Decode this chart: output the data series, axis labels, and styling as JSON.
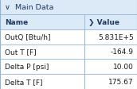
{
  "title": "∨  Main Data",
  "header": [
    "Name",
    "❯ Value"
  ],
  "rows": [
    [
      "OutQ [Btu/h]",
      "5.831E+5"
    ],
    [
      "Out T [F]",
      "-164.9"
    ],
    [
      "Delta P [psi]",
      "10.00"
    ],
    [
      "Delta T [F]",
      "175.67"
    ]
  ],
  "title_bg": "#dce9f7",
  "header_bg": "#dce9f7",
  "row_bg": "#ffffff",
  "border_color": "#8fb4d9",
  "title_color": "#1f3864",
  "header_color": "#1f3864",
  "row_color": "#1a1a1a",
  "title_fontsize": 6.8,
  "header_fontsize": 6.5,
  "row_fontsize": 6.5,
  "col_split": 0.615,
  "fig_width": 1.72,
  "fig_height": 1.13,
  "dpi": 100
}
